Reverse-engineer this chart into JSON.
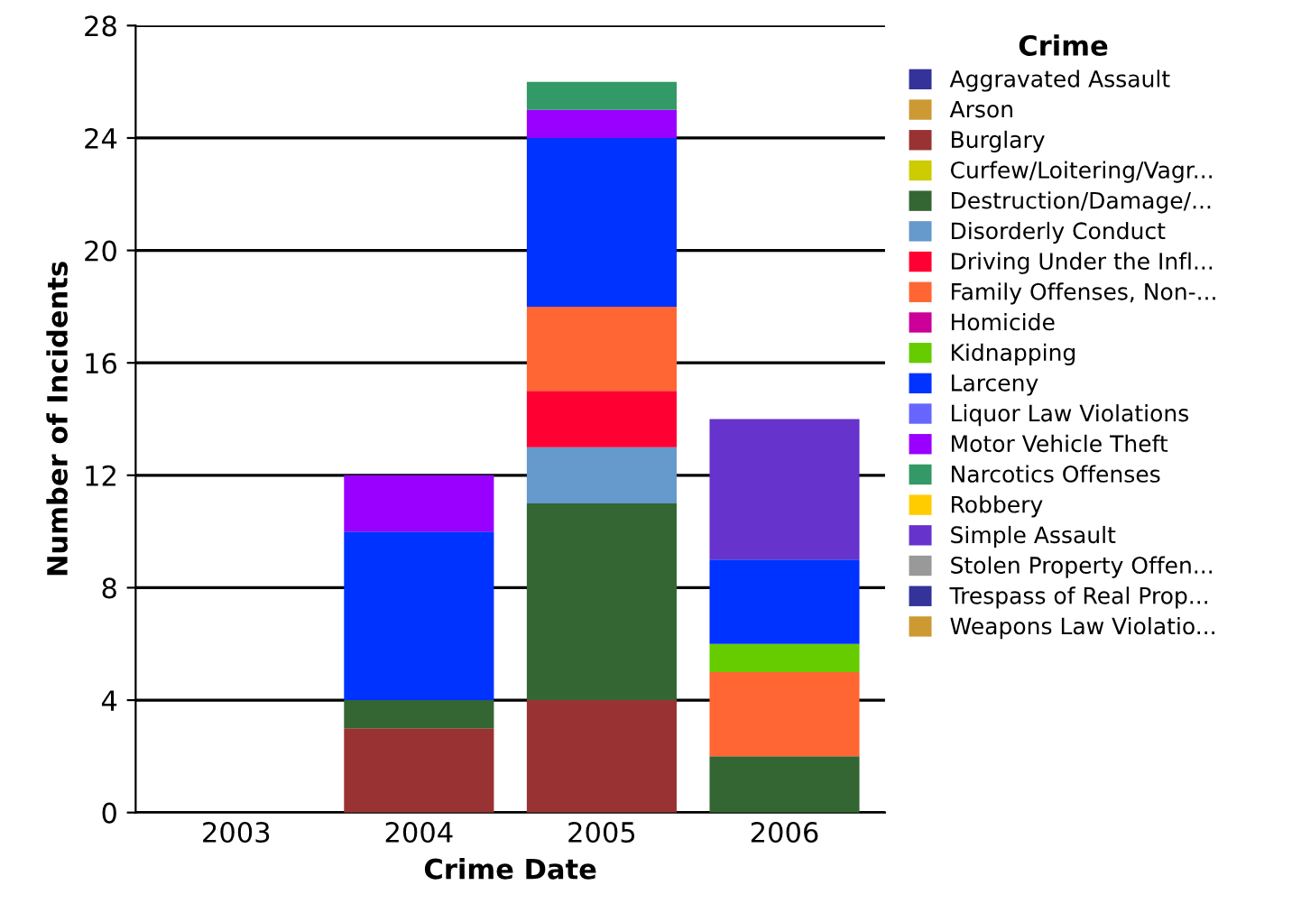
{
  "chart_data": {
    "type": "bar",
    "stacked": true,
    "xlabel": "Crime Date",
    "ylabel": "Number of Incidents",
    "legend_title": "Crime",
    "categories": [
      "2003",
      "2004",
      "2005",
      "2006"
    ],
    "ylim": [
      0,
      28
    ],
    "yticks": [
      0,
      4,
      8,
      12,
      16,
      20,
      24,
      28
    ],
    "grid": "y",
    "legend": "right",
    "series": [
      {
        "name": "Aggravated Assault",
        "color": "#333399",
        "values": [
          0,
          0,
          0,
          0
        ]
      },
      {
        "name": "Arson",
        "color": "#cc9933",
        "values": [
          0,
          0,
          0,
          0
        ]
      },
      {
        "name": "Burglary",
        "color": "#993333",
        "values": [
          0,
          3,
          4,
          0
        ]
      },
      {
        "name": "Curfew/Loitering/Vagr...",
        "color": "#cccc00",
        "values": [
          0,
          0,
          0,
          0
        ]
      },
      {
        "name": "Destruction/Damage/...",
        "color": "#336633",
        "values": [
          0,
          1,
          7,
          2
        ]
      },
      {
        "name": "Disorderly Conduct",
        "color": "#6699cc",
        "values": [
          0,
          0,
          2,
          0
        ]
      },
      {
        "name": "Driving Under the Infl...",
        "color": "#ff0033",
        "values": [
          0,
          0,
          2,
          0
        ]
      },
      {
        "name": "Family Offenses, Non-...",
        "color": "#ff6633",
        "values": [
          0,
          0,
          3,
          3
        ]
      },
      {
        "name": "Homicide",
        "color": "#cc0099",
        "values": [
          0,
          0,
          0,
          0
        ]
      },
      {
        "name": "Kidnapping",
        "color": "#66cc00",
        "values": [
          0,
          0,
          0,
          1
        ]
      },
      {
        "name": "Larceny",
        "color": "#0033ff",
        "values": [
          0,
          6,
          6,
          3
        ]
      },
      {
        "name": "Liquor Law Violations",
        "color": "#6666ff",
        "values": [
          0,
          0,
          0,
          0
        ]
      },
      {
        "name": "Motor Vehicle Theft",
        "color": "#9900ff",
        "values": [
          0,
          2,
          1,
          0
        ]
      },
      {
        "name": "Narcotics Offenses",
        "color": "#339966",
        "values": [
          0,
          0,
          1,
          0
        ]
      },
      {
        "name": "Robbery",
        "color": "#ffcc00",
        "values": [
          0,
          0,
          0,
          0
        ]
      },
      {
        "name": "Simple Assault",
        "color": "#6633cc",
        "values": [
          0,
          0,
          0,
          5
        ]
      },
      {
        "name": "Stolen Property Offen...",
        "color": "#999999",
        "values": [
          0,
          0,
          0,
          0
        ]
      },
      {
        "name": "Trespass of Real Prop...",
        "color": "#333399",
        "values": [
          0,
          0,
          0,
          0
        ]
      },
      {
        "name": "Weapons Law Violatio...",
        "color": "#cc9933",
        "values": [
          0,
          0,
          0,
          0
        ]
      }
    ]
  }
}
